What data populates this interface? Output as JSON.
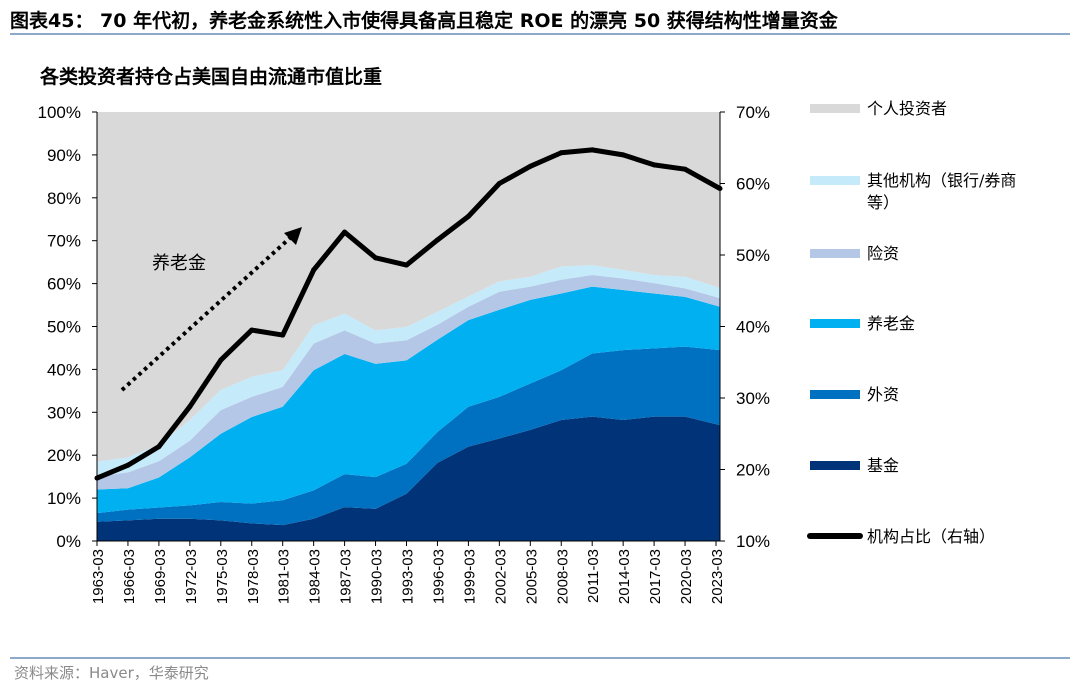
{
  "header": {
    "figure_title": "图表45：  70 年代初，养老金系统性入市使得具备高且稳定 ROE 的漂亮 50 获得结构性增量资金"
  },
  "footer": {
    "source": "资料来源：Haver，华泰研究"
  },
  "chart_data": {
    "type": "area",
    "stacked": true,
    "title": "各类投资者持仓占美国自由流通市值比重",
    "x": [
      "1963-03",
      "1966-03",
      "1969-03",
      "1972-03",
      "1975-03",
      "1978-03",
      "1981-03",
      "1984-03",
      "1987-03",
      "1990-03",
      "1993-03",
      "1996-03",
      "1999-03",
      "2002-03",
      "2005-03",
      "2008-03",
      "2011-03",
      "2014-03",
      "2017-03",
      "2020-03",
      "2023-03"
    ],
    "x_tick_labels": [
      "1963-03",
      "1966-03",
      "1969-03",
      "1972-03",
      "1975-03",
      "1978-03",
      "1981-03",
      "1984-03",
      "1987-03",
      "1990-03",
      "1993-03",
      "1996-03",
      "1999-03",
      "2002-03",
      "2005-03",
      "2008-03",
      "2011-03",
      "2014-03",
      "2017-03",
      "2020-03",
      "2023-03"
    ],
    "y_left": {
      "range": [
        0,
        100
      ],
      "unit": "%",
      "ticks": [
        "0%",
        "10%",
        "20%",
        "30%",
        "40%",
        "50%",
        "60%",
        "70%",
        "80%",
        "90%",
        "100%"
      ]
    },
    "y_right": {
      "range": [
        10,
        70
      ],
      "unit": "%",
      "ticks": [
        "10%",
        "20%",
        "30%",
        "40%",
        "50%",
        "60%",
        "70%"
      ]
    },
    "series": [
      {
        "name": "基金",
        "color": "#003378",
        "values": [
          4.5,
          4.8,
          5.2,
          5.2,
          4.8,
          4.1,
          3.7,
          5.2,
          7.9,
          7.5,
          11.0,
          18.2,
          22.0,
          23.9,
          25.9,
          28.2,
          29.0,
          28.2,
          29.0,
          29.0,
          27.0
        ]
      },
      {
        "name": "外资",
        "color": "#0070c0",
        "values": [
          2.0,
          2.5,
          2.6,
          3.1,
          4.3,
          4.6,
          5.8,
          6.6,
          7.7,
          7.4,
          7.0,
          7.2,
          9.3,
          9.7,
          10.8,
          11.6,
          14.7,
          16.3,
          15.9,
          16.3,
          17.5
        ]
      },
      {
        "name": "养老金",
        "color": "#00b0f0",
        "values": [
          5.5,
          5.0,
          7.0,
          11.2,
          15.9,
          20.2,
          21.8,
          28.0,
          28.0,
          26.4,
          24.1,
          21.5,
          20.2,
          20.3,
          19.5,
          17.9,
          15.6,
          14.0,
          12.8,
          11.6,
          10.1
        ]
      },
      {
        "name": "险资",
        "color": "#b4c7e7",
        "values": [
          3.0,
          3.7,
          3.8,
          3.9,
          5.5,
          4.7,
          4.6,
          6.2,
          5.5,
          4.7,
          4.7,
          3.5,
          3.1,
          4.2,
          3.1,
          3.2,
          2.7,
          2.7,
          2.4,
          2.0,
          2.0
        ]
      },
      {
        "name": "其他机构（银行/券商等）",
        "color": "#c5eafa",
        "values": [
          3.5,
          3.5,
          3.8,
          4.8,
          4.7,
          4.7,
          3.9,
          4.3,
          3.9,
          3.1,
          3.1,
          3.0,
          2.4,
          2.4,
          2.3,
          3.1,
          2.3,
          2.0,
          1.9,
          2.7,
          2.4
        ]
      },
      {
        "name": "个人投资者",
        "color": "#d9d9d9",
        "values": [
          81.5,
          80.5,
          77.6,
          71.8,
          64.8,
          61.7,
          60.2,
          49.7,
          47.0,
          50.9,
          50.1,
          46.6,
          43.0,
          39.5,
          38.4,
          36.0,
          35.7,
          36.8,
          38.0,
          38.4,
          41.0
        ]
      }
    ],
    "line_series": {
      "name": "机构占比（右轴）",
      "axis": "right",
      "color": "#000000",
      "values": [
        18.8,
        20.6,
        23.2,
        28.8,
        35.3,
        39.5,
        38.8,
        47.9,
        53.2,
        49.6,
        48.6,
        52.1,
        55.4,
        60.0,
        62.4,
        64.3,
        64.7,
        64.0,
        62.6,
        62.0,
        59.3
      ]
    },
    "legend_order": [
      "个人投资者",
      "其他机构（银行/券商等）",
      "险资",
      "养老金",
      "外资",
      "基金",
      "机构占比（右轴）"
    ],
    "legend_lines": {
      "其他机构（银行/券商等）": [
        "其他机构（银行/券商",
        "等）"
      ]
    },
    "legend_position": "right",
    "annotation": {
      "text": "养老金",
      "arrow": "dotted-up-right"
    },
    "grid": false
  }
}
